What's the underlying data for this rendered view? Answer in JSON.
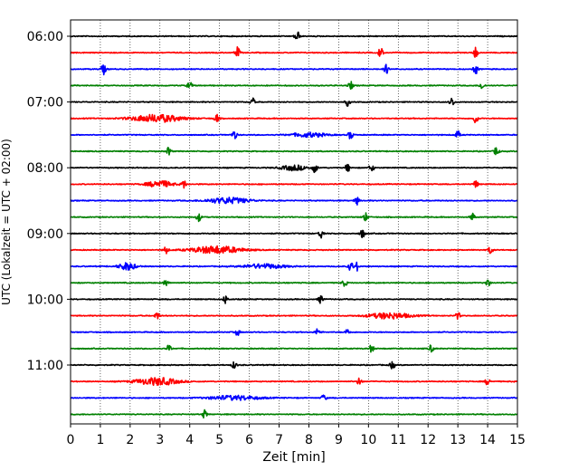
{
  "chart_data": {
    "type": "line",
    "title": "",
    "xlabel": "Zeit  [min]",
    "ylabel": "UTC (Lokalzeit = UTC + 02:00)",
    "xlim": [
      0,
      15
    ],
    "x_ticks": [
      0,
      1,
      2,
      3,
      4,
      5,
      6,
      7,
      8,
      9,
      10,
      11,
      12,
      13,
      14,
      15
    ],
    "y_tick_labels": [
      "06:00",
      "07:00",
      "08:00",
      "09:00",
      "10:00",
      "11:00"
    ],
    "grid": "vertical dotted",
    "colors": [
      "#000000",
      "#ff0000",
      "#0000ff",
      "#008000"
    ],
    "trace_interval_min": 15,
    "traces": [
      {
        "start": "06:00",
        "color": "#000000",
        "events": [
          [
            7.6,
            1.6,
            0.05
          ]
        ]
      },
      {
        "start": "06:15",
        "color": "#ff0000",
        "events": [
          [
            5.6,
            1.5,
            0.05
          ],
          [
            10.4,
            1.5,
            0.05
          ],
          [
            13.6,
            1.4,
            0.05
          ]
        ]
      },
      {
        "start": "06:30",
        "color": "#0000ff",
        "events": [
          [
            1.1,
            1.5,
            0.05
          ],
          [
            10.6,
            1.2,
            0.05
          ],
          [
            13.6,
            1.3,
            0.05
          ]
        ]
      },
      {
        "start": "06:45",
        "color": "#008000",
        "events": [
          [
            4.0,
            1.2,
            0.05
          ],
          [
            9.4,
            1.0,
            0.05
          ],
          [
            13.8,
            1.0,
            0.05
          ]
        ]
      },
      {
        "start": "07:00",
        "color": "#000000",
        "events": [
          [
            6.1,
            1.2,
            0.05
          ],
          [
            9.3,
            1.0,
            0.05
          ],
          [
            12.8,
            1.2,
            0.05
          ]
        ]
      },
      {
        "start": "07:15",
        "color": "#ff0000",
        "events": [
          [
            2.9,
            1.0,
            0.6
          ],
          [
            4.9,
            1.2,
            0.05
          ],
          [
            13.6,
            1.3,
            0.05
          ]
        ]
      },
      {
        "start": "07:30",
        "color": "#0000ff",
        "events": [
          [
            5.5,
            1.2,
            0.05
          ],
          [
            8.0,
            0.6,
            0.4
          ],
          [
            9.4,
            1.2,
            0.05
          ],
          [
            13.0,
            1.0,
            0.05
          ]
        ]
      },
      {
        "start": "07:45",
        "color": "#008000",
        "events": [
          [
            3.3,
            1.1,
            0.05
          ],
          [
            14.3,
            1.3,
            0.05
          ]
        ]
      },
      {
        "start": "08:00",
        "color": "#000000",
        "events": [
          [
            7.5,
            0.7,
            0.3
          ],
          [
            8.2,
            1.3,
            0.05
          ],
          [
            9.3,
            1.1,
            0.05
          ],
          [
            10.1,
            1.1,
            0.05
          ]
        ]
      },
      {
        "start": "08:15",
        "color": "#ff0000",
        "events": [
          [
            3.0,
            0.9,
            0.3
          ],
          [
            3.8,
            1.1,
            0.05
          ],
          [
            13.6,
            1.0,
            0.05
          ]
        ]
      },
      {
        "start": "08:30",
        "color": "#0000ff",
        "events": [
          [
            5.3,
            0.8,
            0.5
          ],
          [
            9.6,
            1.1,
            0.05
          ]
        ]
      },
      {
        "start": "08:45",
        "color": "#008000",
        "events": [
          [
            4.3,
            1.2,
            0.05
          ],
          [
            9.9,
            1.1,
            0.05
          ],
          [
            13.5,
            1.0,
            0.05
          ]
        ]
      },
      {
        "start": "09:00",
        "color": "#000000",
        "events": [
          [
            8.4,
            1.2,
            0.05
          ],
          [
            9.8,
            1.2,
            0.05
          ]
        ]
      },
      {
        "start": "09:15",
        "color": "#ff0000",
        "events": [
          [
            3.2,
            1.0,
            0.05
          ],
          [
            4.9,
            1.0,
            0.6
          ],
          [
            14.1,
            1.0,
            0.05
          ]
        ]
      },
      {
        "start": "09:30",
        "color": "#0000ff",
        "events": [
          [
            1.9,
            1.0,
            0.2
          ],
          [
            6.5,
            0.6,
            0.5
          ],
          [
            9.4,
            1.3,
            0.05
          ],
          [
            9.6,
            1.2,
            0.05
          ]
        ]
      },
      {
        "start": "09:45",
        "color": "#008000",
        "events": [
          [
            3.2,
            1.0,
            0.05
          ],
          [
            9.2,
            1.0,
            0.05
          ],
          [
            14.0,
            1.0,
            0.05
          ]
        ]
      },
      {
        "start": "10:00",
        "color": "#000000",
        "events": [
          [
            5.2,
            1.1,
            0.05
          ],
          [
            8.4,
            1.1,
            0.05
          ]
        ]
      },
      {
        "start": "10:15",
        "color": "#ff0000",
        "events": [
          [
            2.9,
            1.0,
            0.05
          ],
          [
            10.7,
            0.8,
            0.5
          ],
          [
            13.0,
            0.9,
            0.05
          ]
        ]
      },
      {
        "start": "10:30",
        "color": "#0000ff",
        "events": [
          [
            5.6,
            0.9,
            0.05
          ],
          [
            8.3,
            1.0,
            0.05
          ],
          [
            9.3,
            0.9,
            0.05
          ]
        ]
      },
      {
        "start": "10:45",
        "color": "#008000",
        "events": [
          [
            3.3,
            0.9,
            0.05
          ],
          [
            10.1,
            1.0,
            0.05
          ],
          [
            12.1,
            1.0,
            0.05
          ]
        ]
      },
      {
        "start": "11:00",
        "color": "#000000",
        "events": [
          [
            5.5,
            1.0,
            0.05
          ],
          [
            10.8,
            1.2,
            0.05
          ]
        ]
      },
      {
        "start": "11:15",
        "color": "#ff0000",
        "events": [
          [
            2.9,
            1.0,
            0.5
          ],
          [
            9.7,
            1.1,
            0.05
          ],
          [
            14.0,
            1.0,
            0.05
          ]
        ]
      },
      {
        "start": "11:30",
        "color": "#0000ff",
        "events": [
          [
            5.5,
            0.6,
            0.6
          ],
          [
            8.5,
            1.0,
            0.05
          ]
        ]
      },
      {
        "start": "11:45",
        "color": "#008000",
        "events": [
          [
            4.5,
            1.1,
            0.05
          ]
        ]
      }
    ]
  }
}
